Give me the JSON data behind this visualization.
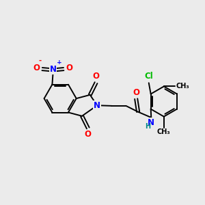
{
  "background_color": "#ebebeb",
  "bond_color": "#000000",
  "bond_width": 1.4,
  "atom_colors": {
    "N": "#0000ff",
    "O": "#ff0000",
    "Cl": "#00bb00",
    "H": "#008888",
    "C": "#000000"
  },
  "font_size": 8.5
}
